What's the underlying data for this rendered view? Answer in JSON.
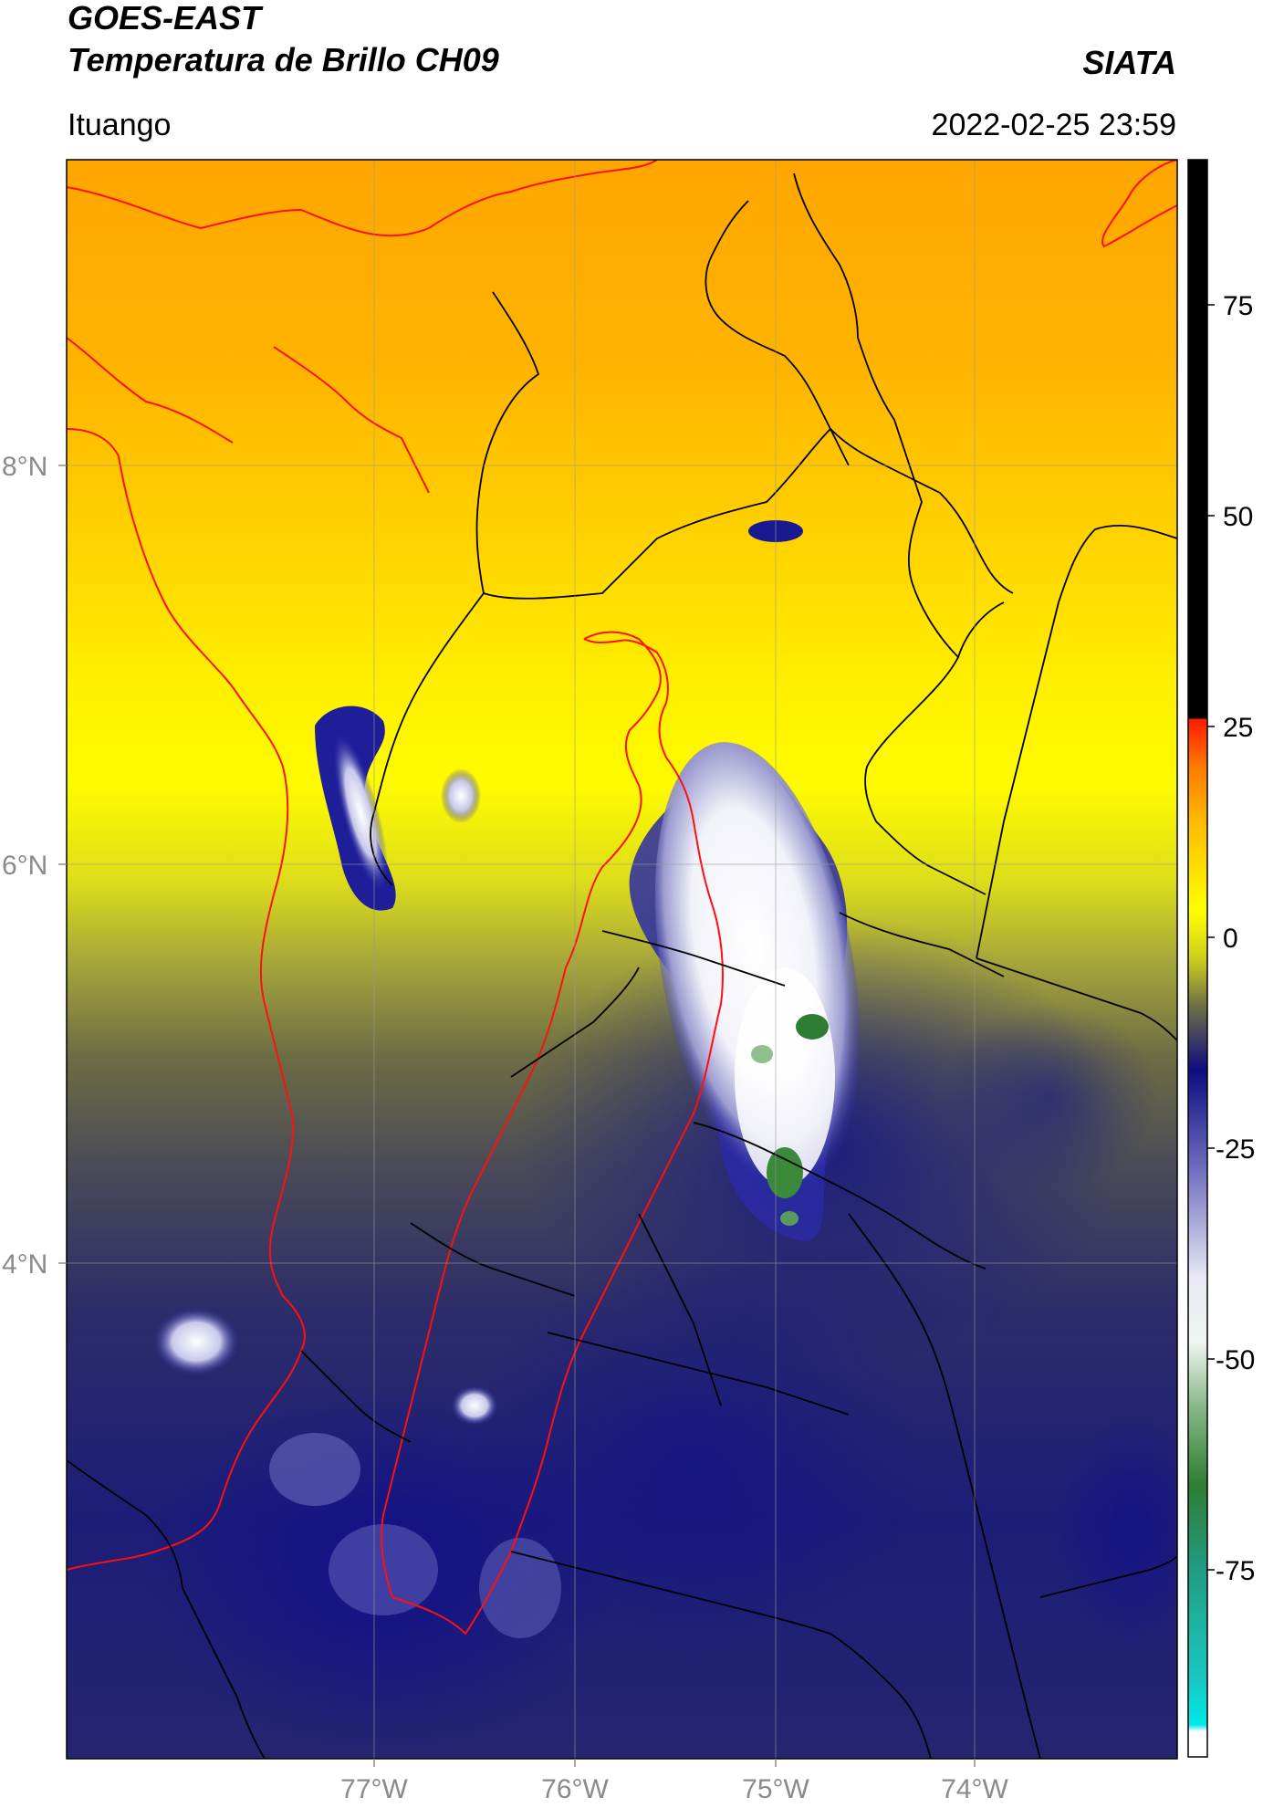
{
  "header": {
    "title_line1": "GOES-EAST",
    "title_line2": "Temperatura de Brillo CH09",
    "brand": "SIATA",
    "region": "Ituango",
    "timestamp": "2022-02-25 23:59"
  },
  "map": {
    "lat_labels": [
      "8°N",
      "6°N",
      "4°N"
    ],
    "lon_labels": [
      "77°W",
      "76°W",
      "75°W",
      "74°W"
    ]
  },
  "colorbar": {
    "tick_labels": [
      "75",
      "50",
      "25",
      "0",
      "-25",
      "-50",
      "-75"
    ],
    "colors": {
      "top_black": "#000000",
      "red": "#ff1a00",
      "orange": "#ffa200",
      "yellow": "#ffff00",
      "olive": "#7e7e3c",
      "navy": "#0d0d80",
      "white": "#ffffff",
      "green": "#2e7d32",
      "cyan": "#00e5e5"
    }
  },
  "boundary_colors": {
    "country": "#ff1010",
    "admin": "#000000"
  }
}
